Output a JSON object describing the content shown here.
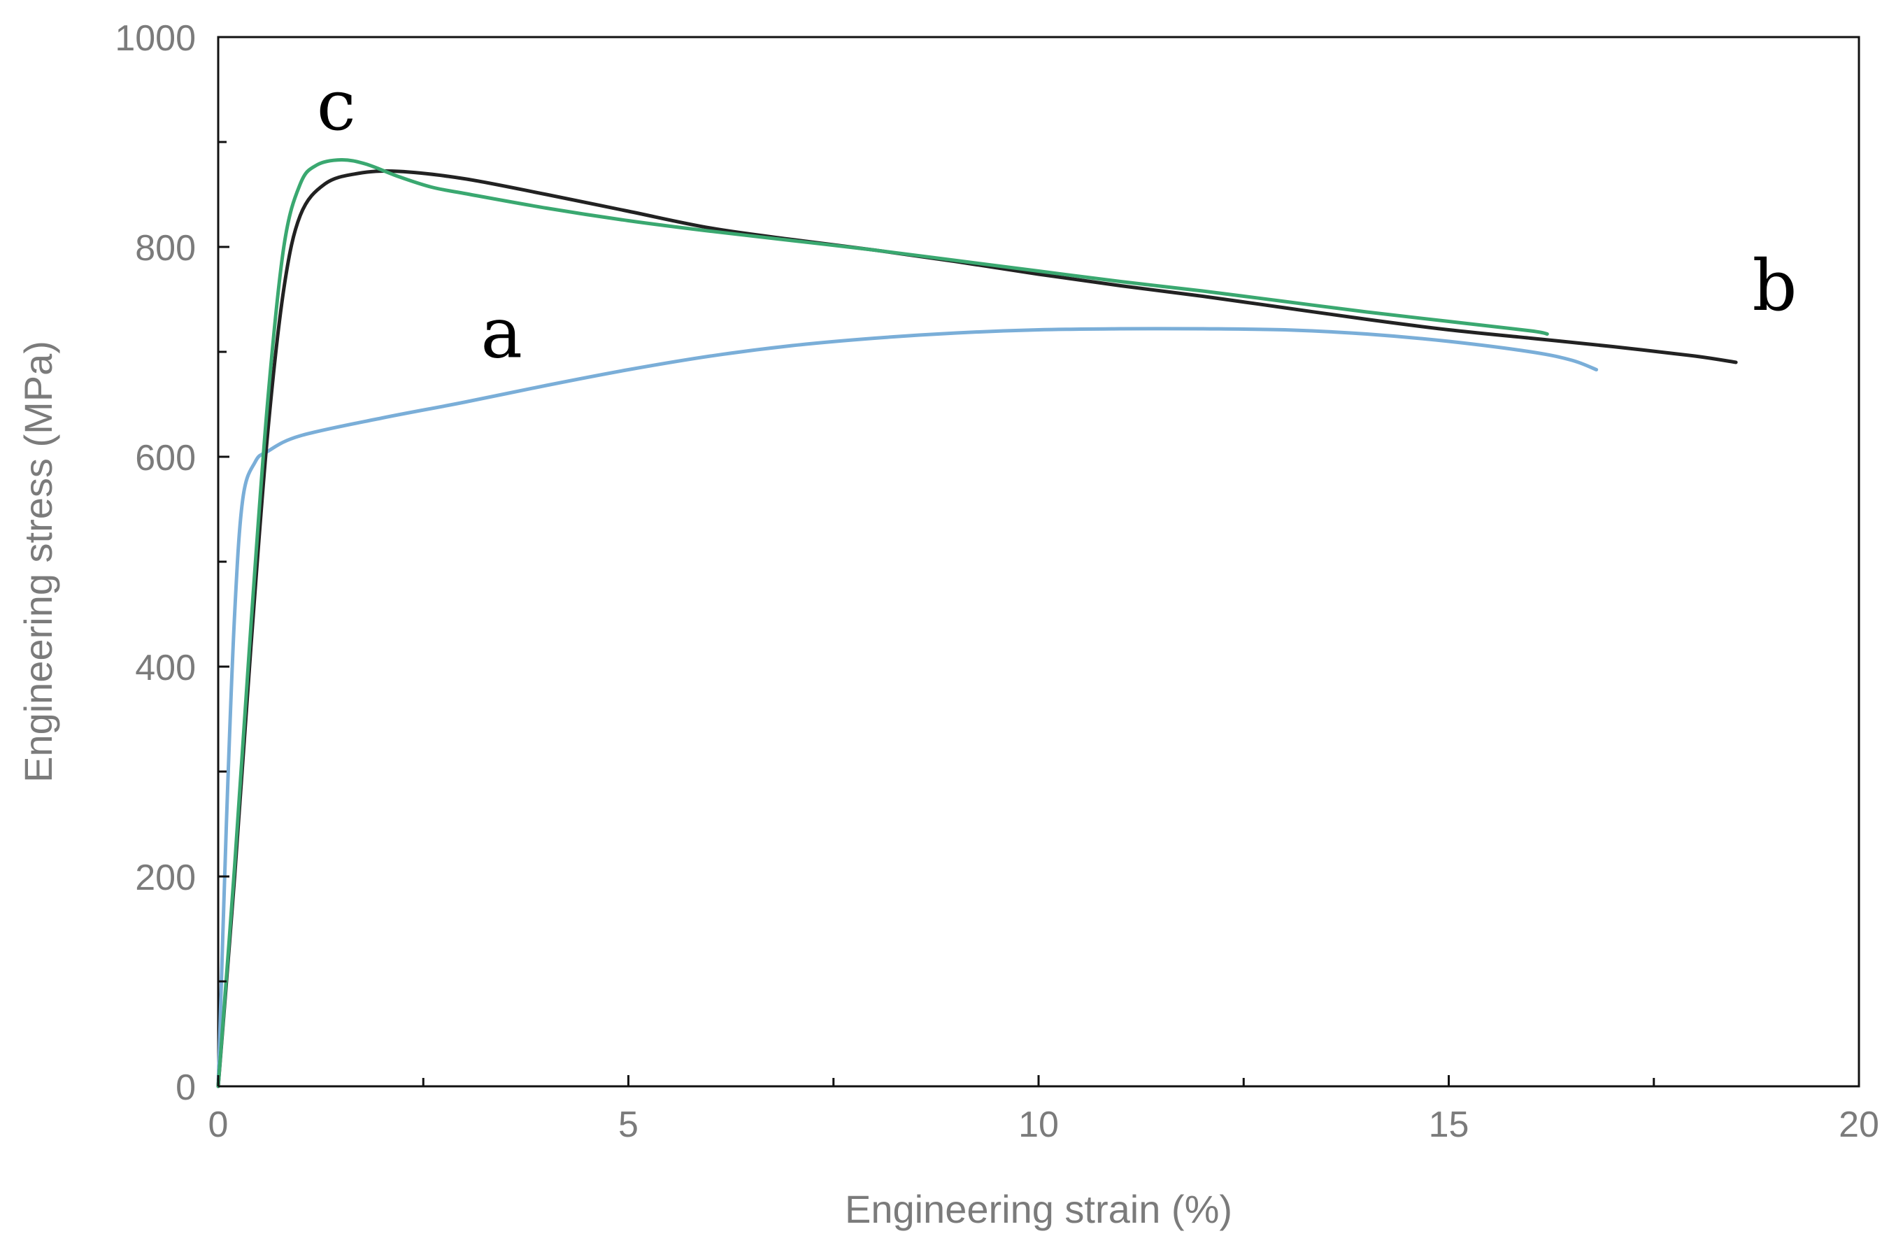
{
  "chart_data": {
    "type": "line",
    "title": "",
    "xlabel": "Engineering strain (%)",
    "ylabel": "Engineering stress (MPa)",
    "xlim": [
      0,
      20
    ],
    "ylim": [
      0,
      1000
    ],
    "x_ticks": [
      0,
      5,
      10,
      15,
      20
    ],
    "x_tick_labels": [
      "0",
      "5",
      "10",
      "15",
      "20"
    ],
    "y_ticks": [
      0,
      200,
      400,
      600,
      800,
      1000
    ],
    "y_tick_labels": [
      "0",
      "200",
      "400",
      "600",
      "800",
      "1000"
    ],
    "grid": false,
    "series": [
      {
        "name": "a",
        "label": "a",
        "label_at": [
          3.2,
          695
        ],
        "color": "#7aaed8",
        "x": [
          0,
          0.1,
          0.2,
          0.3,
          0.45,
          0.6,
          1.0,
          2.0,
          3.0,
          4.0,
          5.0,
          6.0,
          7.0,
          8.0,
          9.0,
          10.0,
          11.0,
          12.0,
          13.0,
          14.0,
          15.0,
          16.0,
          16.5,
          16.8
        ],
        "y": [
          0,
          250,
          450,
          560,
          595,
          605,
          620,
          637,
          652,
          668,
          683,
          696,
          706,
          713,
          718,
          721,
          722,
          722,
          721,
          717,
          710,
          700,
          692,
          683
        ]
      },
      {
        "name": "b",
        "label": "b",
        "label_at": [
          18.7,
          740
        ],
        "color": "#222222",
        "x": [
          0,
          0.2,
          0.4,
          0.6,
          0.8,
          1.0,
          1.3,
          1.7,
          2.2,
          3.0,
          4.0,
          5.0,
          6.0,
          7.0,
          8.0,
          9.0,
          10.0,
          11.0,
          12.0,
          13.0,
          14.0,
          15.0,
          16.0,
          17.0,
          18.0,
          18.5
        ],
        "y": [
          0,
          200,
          420,
          620,
          760,
          830,
          860,
          870,
          872,
          865,
          850,
          834,
          818,
          807,
          797,
          786,
          774,
          763,
          753,
          742,
          731,
          721,
          713,
          705,
          696,
          690
        ]
      },
      {
        "name": "c",
        "label": "c",
        "label_at": [
          1.2,
          912
        ],
        "color": "#3aa870",
        "x": [
          0,
          0.2,
          0.4,
          0.6,
          0.8,
          1.0,
          1.2,
          1.5,
          1.8,
          2.2,
          2.6,
          3.0,
          4.0,
          5.0,
          6.0,
          7.0,
          8.0,
          9.0,
          10.0,
          11.0,
          12.0,
          13.0,
          14.0,
          15.0,
          16.0,
          16.2
        ],
        "y": [
          0,
          210,
          440,
          650,
          800,
          860,
          878,
          883,
          879,
          867,
          857,
          851,
          837,
          825,
          815,
          806,
          797,
          787,
          777,
          767,
          758,
          748,
          738,
          729,
          720,
          717
        ]
      }
    ]
  }
}
